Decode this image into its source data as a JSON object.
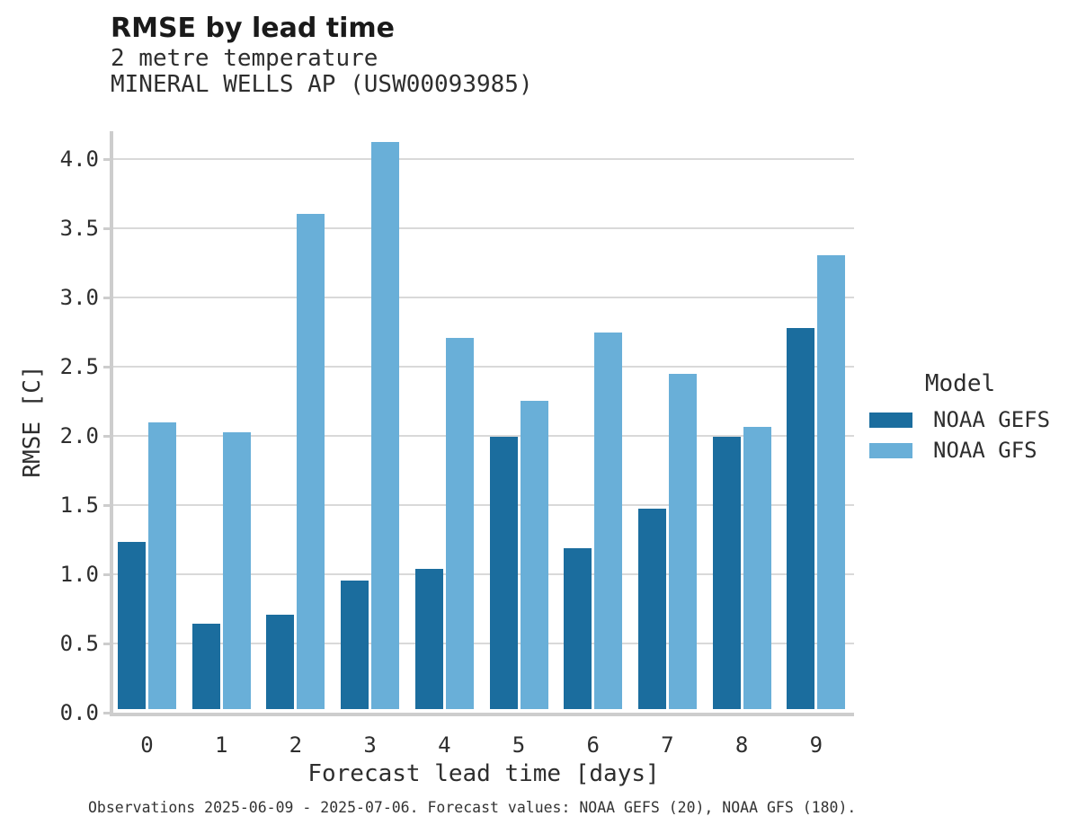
{
  "header": {
    "title": "RMSE by lead time",
    "subtitle1": "2 metre temperature",
    "subtitle2": "MINERAL WELLS AP (USW00093985)"
  },
  "colors": {
    "noaa_gefs": "#1b6d9e",
    "noaa_gfs": "#69afd8",
    "gridline": "#d9d9d9",
    "axis": "#cdcdcd"
  },
  "chart_data": {
    "type": "bar",
    "title": "RMSE by lead time",
    "subtitle": [
      "2 metre temperature",
      "MINERAL WELLS AP (USW00093985)"
    ],
    "categories": [
      "0",
      "1",
      "2",
      "3",
      "4",
      "5",
      "6",
      "7",
      "8",
      "9"
    ],
    "series": [
      {
        "name": "NOAA GEFS",
        "color": "#1b6d9e",
        "values": [
          1.21,
          0.62,
          0.68,
          0.93,
          1.01,
          1.97,
          1.16,
          1.45,
          1.97,
          2.75
        ]
      },
      {
        "name": "NOAA GFS",
        "color": "#69afd8",
        "values": [
          2.07,
          2.0,
          3.58,
          4.1,
          2.68,
          2.23,
          2.72,
          2.42,
          2.04,
          3.28
        ]
      }
    ],
    "xlabel": "Forecast lead time [days]",
    "ylabel": "RMSE [C]",
    "ylim": [
      0,
      4.2
    ],
    "yticks": [
      "0.0",
      "0.5",
      "1.0",
      "1.5",
      "2.0",
      "2.5",
      "3.0",
      "3.5",
      "4.0"
    ],
    "grid": true,
    "legend_title": "Model",
    "legend_position": "right",
    "caption": "Observations 2025-06-09 - 2025-07-06. Forecast values: NOAA GEFS (20), NOAA GFS (180)."
  }
}
